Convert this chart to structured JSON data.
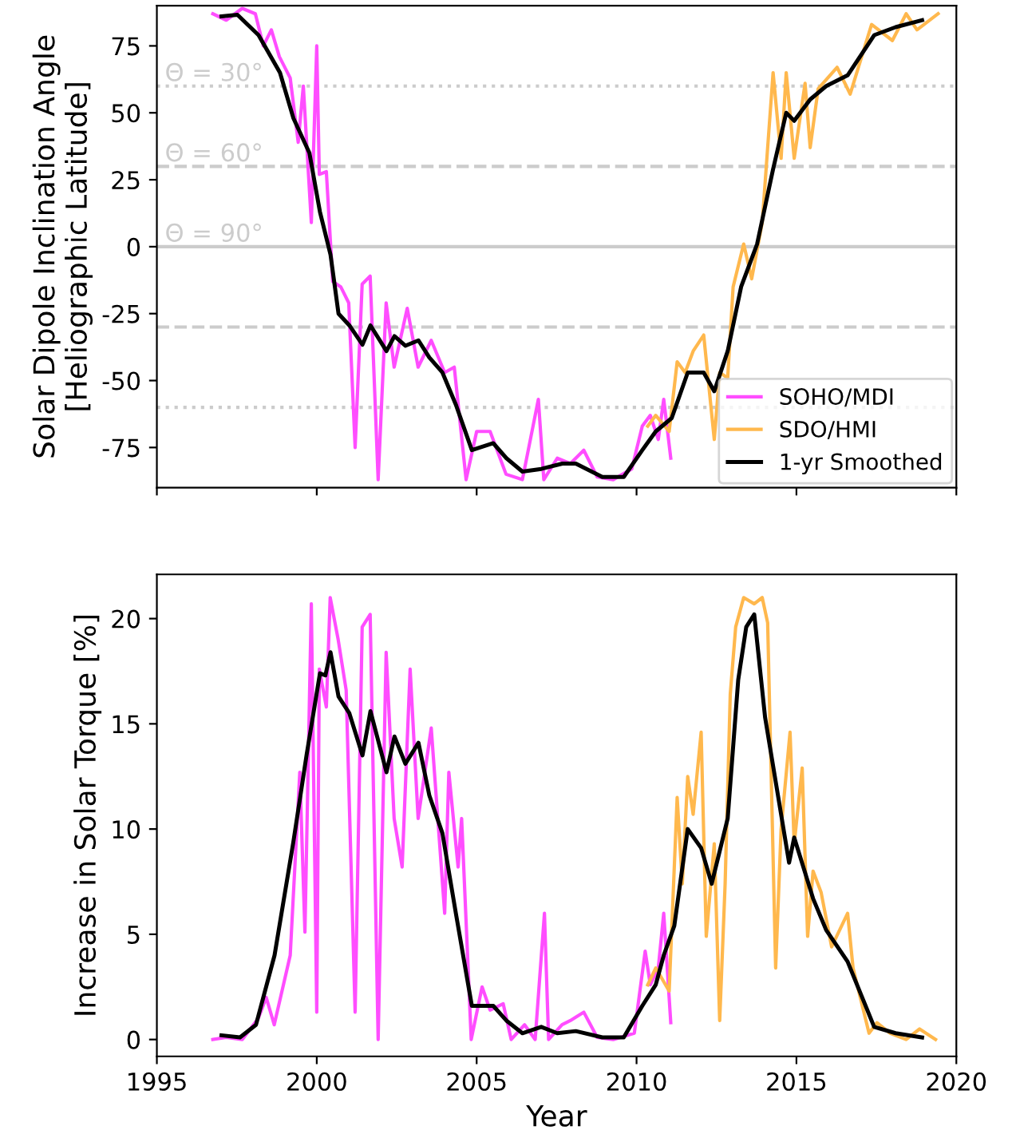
{
  "chart_data": [
    {
      "type": "line",
      "ylabel": "Solar Dipole Inclination Angle\n[Heliographic Latitude]",
      "xlim": [
        1995,
        2020
      ],
      "xticks": [
        1995,
        2000,
        2005,
        2010,
        2015,
        2020
      ],
      "ylim": [
        -90,
        90
      ],
      "yticks": [
        -75,
        -50,
        -25,
        0,
        25,
        50,
        75
      ],
      "tick_labels": "y",
      "grid": false,
      "legend": "lower right",
      "line_style": "solid",
      "annotations": [
        "Θ = 30°",
        "Θ = 60°",
        "Θ = 90°"
      ],
      "ref_lines": [
        {
          "axis": "y",
          "value": 60,
          "label": null,
          "color": "#cccccc",
          "line_style": "dotted"
        },
        {
          "axis": "y",
          "value": 30,
          "label": null,
          "color": "#cccccc",
          "line_style": "dashed"
        },
        {
          "axis": "y",
          "value": 0,
          "label": null,
          "color": "#cccccc",
          "line_style": "solid"
        },
        {
          "axis": "y",
          "value": -30,
          "label": null,
          "color": "#cccccc",
          "line_style": "dashed"
        },
        {
          "axis": "y",
          "value": -60,
          "label": null,
          "color": "#cccccc",
          "line_style": "dotted"
        }
      ],
      "series": [
        {
          "name": "SOHO/MDI",
          "color": "#ff4dff",
          "x": [
            1996.75,
            1997.17,
            1997.67,
            1998.08,
            1998.33,
            1998.58,
            1998.83,
            1999.17,
            1999.42,
            1999.58,
            1999.83,
            2000.0,
            2000.08,
            2000.3,
            2000.5,
            2000.75,
            2001.0,
            2001.2,
            2001.42,
            2001.67,
            2001.92,
            2002.17,
            2002.42,
            2002.83,
            2003.17,
            2003.58,
            2004.0,
            2004.3,
            2004.67,
            2005.0,
            2005.42,
            2005.92,
            2006.43,
            2006.93,
            2007.1,
            2007.52,
            2007.93,
            2008.35,
            2008.77,
            2009.27,
            2009.85,
            2010.18,
            2010.43,
            2010.68,
            2010.85,
            2011.07
          ],
          "values": [
            87,
            84.6,
            89,
            87,
            75,
            81,
            71,
            63,
            39,
            60,
            9,
            75,
            27,
            28,
            -13,
            -15,
            -21,
            -75,
            -14,
            -11,
            -87,
            -21,
            -45,
            -23,
            -45,
            -35,
            -47,
            -45,
            -87,
            -69,
            -69,
            -85,
            -87,
            -57,
            -87,
            -79,
            -81,
            -76,
            -86,
            -87,
            -83,
            -67,
            -63,
            -72,
            -57,
            -79
          ]
        },
        {
          "name": "SDO/HMI",
          "color": "#ffb84d",
          "x": [
            2010.35,
            2010.6,
            2011.02,
            2011.27,
            2011.52,
            2011.77,
            2012.1,
            2012.43,
            2012.6,
            2012.85,
            2013.02,
            2013.35,
            2013.6,
            2013.93,
            2014.27,
            2014.52,
            2014.68,
            2014.93,
            2015.27,
            2015.43,
            2015.68,
            2016.27,
            2016.68,
            2017.35,
            2018.0,
            2018.43,
            2018.77,
            2019.43
          ],
          "values": [
            -67,
            -63,
            -69,
            -43,
            -47,
            -39,
            -33,
            -72,
            -47,
            -49,
            -15,
            1,
            -12,
            9,
            65,
            33,
            65,
            33,
            61,
            37,
            59,
            67,
            57,
            83,
            77,
            87,
            81,
            87
          ]
        },
        {
          "name": "1-yr Smoothed",
          "color": "#000000",
          "x": [
            1997.02,
            1997.52,
            1998.18,
            1998.85,
            1999.27,
            1999.77,
            2000.1,
            2000.43,
            2000.68,
            2001.02,
            2001.43,
            2001.68,
            2002.18,
            2002.43,
            2002.77,
            2003.18,
            2003.52,
            2003.93,
            2004.35,
            2004.85,
            2005.52,
            2005.93,
            2006.43,
            2007.02,
            2007.68,
            2008.1,
            2008.93,
            2009.6,
            2010.18,
            2010.6,
            2011.1,
            2011.6,
            2012.1,
            2012.43,
            2012.85,
            2013.27,
            2013.77,
            2014.27,
            2014.68,
            2014.93,
            2015.43,
            2015.93,
            2016.6,
            2017.43,
            2018.1,
            2018.93
          ],
          "values": [
            86,
            86.6,
            79,
            65,
            48,
            35,
            13,
            -3,
            -25,
            -29.4,
            -36.6,
            -29.4,
            -39,
            -33.4,
            -37,
            -35,
            -41.4,
            -47,
            -59,
            -76,
            -73.4,
            -79,
            -84,
            -83,
            -81,
            -81,
            -86,
            -86,
            -76,
            -69,
            -64,
            -47,
            -47,
            -54,
            -39,
            -15,
            1,
            29,
            50,
            47,
            55,
            60,
            64,
            79,
            82,
            84.6
          ]
        }
      ]
    },
    {
      "type": "line",
      "xlabel": "Year",
      "ylabel": "Increase in Solar Torque [%]",
      "xlim": [
        1995,
        2020
      ],
      "xticks": [
        1995,
        2000,
        2005,
        2010,
        2015,
        2020
      ],
      "ylim": [
        -0.8,
        22.1
      ],
      "yticks": [
        0,
        5,
        10,
        15,
        20
      ],
      "grid": false,
      "line_style": "solid",
      "series": [
        {
          "color": "#ff4dff",
          "x": [
            1996.75,
            1997.17,
            1997.67,
            1998.17,
            1998.42,
            1998.67,
            1999.17,
            1999.47,
            1999.63,
            1999.83,
            2000.0,
            2000.08,
            2000.3,
            2000.42,
            2000.67,
            2000.92,
            2001.2,
            2001.42,
            2001.67,
            2001.92,
            2002.17,
            2002.42,
            2002.67,
            2002.92,
            2003.17,
            2003.58,
            2004.0,
            2004.13,
            2004.42,
            2004.53,
            2004.83,
            2005.17,
            2005.42,
            2005.83,
            2006.08,
            2006.5,
            2006.83,
            2007.12,
            2007.25,
            2007.67,
            2007.93,
            2008.35,
            2008.77,
            2009.27,
            2009.93,
            2010.27,
            2010.43,
            2010.68,
            2010.85,
            2011.07
          ],
          "values": [
            0,
            0.1,
            0,
            1.0,
            2.0,
            0.7,
            4.0,
            12.7,
            5.1,
            20.7,
            1.3,
            17.6,
            15.8,
            21,
            19,
            16.6,
            1.3,
            19.6,
            20.2,
            0,
            18.4,
            10.5,
            8.2,
            17.6,
            10.5,
            14.8,
            6.0,
            12.7,
            8.2,
            10.5,
            0,
            2.5,
            1.4,
            1.7,
            0,
            0.7,
            0,
            6.0,
            0,
            0.7,
            0.9,
            1.3,
            0.1,
            0,
            0.3,
            4.2,
            2.6,
            3.4,
            6.0,
            0.8
          ]
        },
        {
          "color": "#ffb84d",
          "x": [
            2010.35,
            2010.6,
            2011.02,
            2011.27,
            2011.43,
            2011.6,
            2011.77,
            2012.02,
            2012.18,
            2012.43,
            2012.6,
            2012.77,
            2012.93,
            2013.1,
            2013.35,
            2013.68,
            2013.93,
            2014.1,
            2014.35,
            2014.52,
            2014.8,
            2014.93,
            2015.18,
            2015.35,
            2015.52,
            2015.77,
            2016.1,
            2016.6,
            2016.77,
            2017.27,
            2017.52,
            2017.93,
            2018.43,
            2018.85,
            2019.35
          ],
          "values": [
            2.6,
            3.4,
            2.3,
            11.5,
            7.4,
            12.5,
            10.7,
            14.6,
            4.9,
            9.3,
            0.9,
            7.4,
            16.4,
            19.6,
            21,
            20.7,
            21,
            19.8,
            3.4,
            10.0,
            14.6,
            9.3,
            12.9,
            4.9,
            8.0,
            7.0,
            4.4,
            6.0,
            3.4,
            0.3,
            0.8,
            0.3,
            0,
            0.5,
            0
          ]
        },
        {
          "color": "#000000",
          "x": [
            1997.02,
            1997.6,
            1998.1,
            1998.68,
            1999.27,
            1999.68,
            2000.1,
            2000.27,
            2000.43,
            2000.68,
            2001.02,
            2001.43,
            2001.68,
            2002.18,
            2002.43,
            2002.77,
            2003.18,
            2003.52,
            2003.93,
            2004.35,
            2004.85,
            2005.52,
            2005.93,
            2006.43,
            2007.02,
            2007.52,
            2008.1,
            2008.93,
            2009.6,
            2010.18,
            2010.6,
            2010.85,
            2011.18,
            2011.6,
            2012.02,
            2012.35,
            2012.85,
            2013.18,
            2013.43,
            2013.68,
            2014.02,
            2014.27,
            2014.77,
            2014.93,
            2015.52,
            2015.93,
            2016.6,
            2017.43,
            2018.1,
            2018.93
          ],
          "values": [
            0.2,
            0.1,
            0.7,
            4.0,
            9.4,
            13.5,
            17.4,
            17.3,
            18.4,
            16.3,
            15.5,
            13.5,
            15.6,
            12.7,
            14.4,
            13.1,
            14.1,
            11.6,
            9.8,
            6.0,
            1.6,
            1.6,
            0.9,
            0.3,
            0.6,
            0.3,
            0.4,
            0.1,
            0.1,
            1.6,
            2.6,
            4.0,
            5.4,
            10.0,
            9.1,
            7.4,
            10.5,
            17.1,
            19.6,
            20.2,
            15.3,
            13.0,
            8.4,
            9.6,
            6.7,
            5.2,
            3.7,
            0.6,
            0.3,
            0.1
          ]
        }
      ]
    }
  ]
}
